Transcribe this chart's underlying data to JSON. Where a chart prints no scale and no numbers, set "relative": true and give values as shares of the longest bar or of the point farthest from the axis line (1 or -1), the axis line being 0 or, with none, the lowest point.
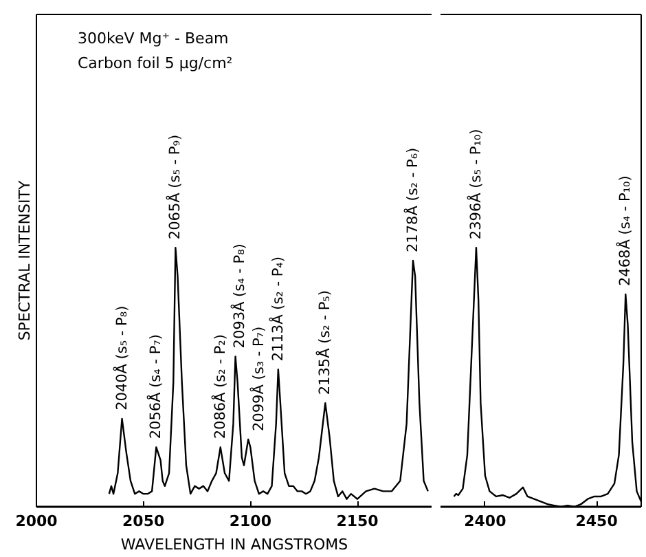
{
  "chart_data": [
    {
      "type": "line",
      "xlabel": "WAVELENGTH IN ANGSTROMS",
      "ylabel": "SPECTRAL INTENSITY",
      "relative": true,
      "tick_labels": "x",
      "grid": false,
      "xlim": [
        2000,
        2185
      ],
      "xticks": [
        2000,
        2050,
        2100,
        2150
      ],
      "x": [
        2034,
        2035,
        2036,
        2038,
        2040,
        2042,
        2044,
        2046,
        2048,
        2050,
        2052,
        2054,
        2056,
        2058,
        2059,
        2060,
        2062,
        2064,
        2065,
        2066,
        2068,
        2070,
        2072,
        2074,
        2076,
        2078,
        2080,
        2082,
        2084,
        2086,
        2088,
        2090,
        2092,
        2093,
        2094,
        2096,
        2097,
        2099,
        2100,
        2102,
        2104,
        2106,
        2108,
        2110,
        2112,
        2113,
        2114,
        2116,
        2118,
        2120,
        2122,
        2124,
        2126,
        2128,
        2130,
        2132,
        2135,
        2137,
        2139,
        2141,
        2143,
        2145,
        2147,
        2150,
        2154,
        2158,
        2162,
        2166,
        2170,
        2173,
        2176,
        2177,
        2179,
        2181,
        2183
      ],
      "series": [
        {
          "color": "#000000",
          "values": [
            0.05,
            0.08,
            0.05,
            0.13,
            0.34,
            0.21,
            0.1,
            0.05,
            0.06,
            0.05,
            0.05,
            0.06,
            0.23,
            0.18,
            0.1,
            0.08,
            0.13,
            0.48,
            1.0,
            0.89,
            0.48,
            0.16,
            0.05,
            0.08,
            0.07,
            0.08,
            0.06,
            0.1,
            0.13,
            0.23,
            0.13,
            0.1,
            0.32,
            0.58,
            0.48,
            0.19,
            0.16,
            0.26,
            0.23,
            0.1,
            0.05,
            0.06,
            0.05,
            0.08,
            0.32,
            0.53,
            0.4,
            0.13,
            0.08,
            0.08,
            0.06,
            0.06,
            0.05,
            0.06,
            0.1,
            0.19,
            0.4,
            0.27,
            0.1,
            0.04,
            0.06,
            0.03,
            0.05,
            0.03,
            0.06,
            0.07,
            0.06,
            0.06,
            0.1,
            0.32,
            0.95,
            0.89,
            0.4,
            0.1,
            0.06
          ]
        }
      ],
      "annotations": [
        "300keV Mg⁺ - Beam",
        "Carbon foil  5 μg/cm²",
        {
          "text": "2040Å (s₅ - P₈)",
          "x": 2040,
          "y": 0.34
        },
        {
          "text": "2056Å (s₄ - P₇)",
          "x": 2056,
          "y": 0.23
        },
        {
          "text": "2065Å (s₅ - P₉)",
          "x": 2065,
          "y": 1.0
        },
        {
          "text": "2086Å (s₂ - P₂)",
          "x": 2086,
          "y": 0.23
        },
        {
          "text": "2093Å (s₄ - P₈)",
          "x": 2093,
          "y": 0.58
        },
        {
          "text": "2099Å (s₃ - P₇)",
          "x": 2099,
          "y": 0.26
        },
        {
          "text": "2113Å (s₂ - P₄)",
          "x": 2113,
          "y": 0.53
        },
        {
          "text": "2135Å (s₂ - P₅)",
          "x": 2135,
          "y": 0.4
        },
        {
          "text": "2178Å (s₂ - P₆)",
          "x": 2176,
          "y": 0.95
        }
      ]
    },
    {
      "type": "line",
      "relative": true,
      "tick_labels": "x",
      "grid": false,
      "xlim": [
        2380,
        2470
      ],
      "xticks": [
        2400,
        2450
      ],
      "x": [
        2386,
        2387,
        2388,
        2390,
        2392,
        2394,
        2396,
        2397,
        2398,
        2400,
        2402,
        2405,
        2408,
        2411,
        2414,
        2417,
        2419,
        2422,
        2425,
        2428,
        2431,
        2434,
        2437,
        2440,
        2443,
        2446,
        2449,
        2452,
        2455,
        2458,
        2460,
        2462,
        2463,
        2464,
        2466,
        2468,
        2470
      ],
      "series": [
        {
          "color": "#000000",
          "values": [
            0.04,
            0.05,
            0.045,
            0.07,
            0.2,
            0.6,
            1.0,
            0.8,
            0.4,
            0.12,
            0.06,
            0.04,
            0.045,
            0.035,
            0.05,
            0.075,
            0.04,
            0.03,
            0.02,
            0.01,
            0.005,
            0.0,
            0.005,
            0.0,
            0.01,
            0.03,
            0.04,
            0.04,
            0.05,
            0.09,
            0.2,
            0.55,
            0.82,
            0.7,
            0.25,
            0.06,
            0.02
          ]
        }
      ],
      "annotations": [
        {
          "text": "2396Å (s₅ - P₁₀)",
          "x": 2396,
          "y": 1.0
        },
        {
          "text": "2468Å (s₄ - P₁₀)",
          "x": 2463,
          "y": 0.82
        }
      ]
    }
  ]
}
